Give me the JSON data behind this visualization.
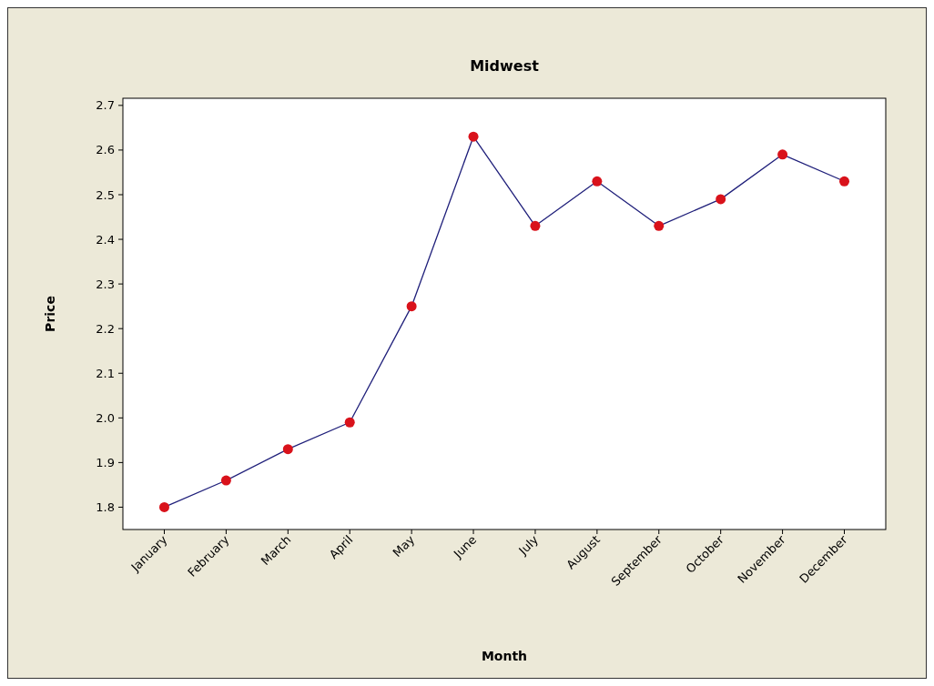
{
  "chart_data": {
    "type": "line",
    "title": "Midwest",
    "xlabel": "Month",
    "ylabel": "Price",
    "categories": [
      "January",
      "February",
      "March",
      "April",
      "May",
      "June",
      "July",
      "August",
      "September",
      "October",
      "November",
      "December"
    ],
    "series": [
      {
        "color": "#1f1f7a",
        "values": [
          1.8,
          1.86,
          1.93,
          1.99,
          2.25,
          2.63,
          2.43,
          2.53,
          2.43,
          2.49,
          2.59,
          2.53
        ]
      }
    ],
    "ylim": [
      1.75,
      2.716
    ],
    "yticks": [
      {
        "value": 1.8,
        "label": "1.8"
      },
      {
        "value": 1.9,
        "label": "1.9"
      },
      {
        "value": 2.0,
        "label": "2.0"
      },
      {
        "value": 2.1,
        "label": "2.1"
      },
      {
        "value": 2.2,
        "label": "2.2"
      },
      {
        "value": 2.3,
        "label": "2.3"
      },
      {
        "value": 2.4,
        "label": "2.4"
      },
      {
        "value": 2.5,
        "label": "2.5"
      },
      {
        "value": 2.6,
        "label": "2.6"
      },
      {
        "value": 2.7,
        "label": "2.7"
      }
    ],
    "marker": "circle",
    "grid": false
  }
}
